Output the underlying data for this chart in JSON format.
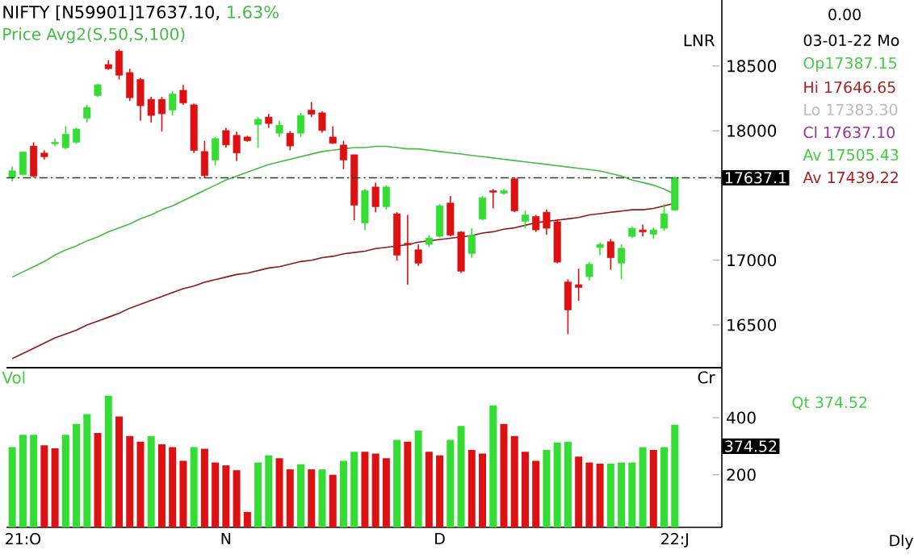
{
  "chart_data": [
    {
      "type": "candlestick",
      "title": "NIFTY [N59901]17637.10,",
      "subtitle": "1.63%",
      "categories": [
        null,
        null,
        null,
        null,
        null,
        null,
        null,
        null,
        null,
        null,
        null,
        null,
        null,
        null,
        null,
        null,
        null,
        null,
        null,
        null,
        null,
        null,
        null,
        null,
        null,
        null,
        null,
        null,
        null,
        null,
        null,
        null,
        null,
        null,
        null,
        null,
        null,
        null,
        null,
        null,
        null,
        null,
        null,
        null,
        null,
        null,
        null,
        null,
        null,
        null,
        null,
        null,
        null,
        null,
        null,
        null,
        null,
        null,
        null,
        null,
        null,
        null,
        null
      ],
      "ohlc": [
        [
          17641,
          17724,
          17608,
          17691
        ],
        [
          17662,
          17840,
          17655,
          17836
        ],
        [
          17882,
          17911,
          17641,
          17649
        ],
        [
          17828,
          17849,
          17778,
          17799
        ],
        [
          17899,
          17940,
          17882,
          17911
        ],
        [
          17869,
          18035,
          17857,
          17973
        ],
        [
          17911,
          18023,
          17899,
          18014
        ],
        [
          18097,
          18201,
          18064,
          18180
        ],
        [
          18272,
          18363,
          18263,
          18355
        ],
        [
          18512,
          18545,
          18471,
          18479
        ],
        [
          18616,
          18629,
          18396,
          18429
        ],
        [
          18450,
          18479,
          18230,
          18255
        ],
        [
          18396,
          18409,
          18077,
          18193
        ],
        [
          18243,
          18263,
          18064,
          18118
        ],
        [
          18243,
          18263,
          17994,
          18131
        ],
        [
          18160,
          18305,
          18118,
          18284
        ],
        [
          18313,
          18355,
          18201,
          18214
        ],
        [
          18201,
          18210,
          17828,
          17848
        ],
        [
          17840,
          17923,
          17633,
          17653
        ],
        [
          17774,
          17952,
          17732,
          17940
        ],
        [
          18002,
          18023,
          17869,
          17890
        ],
        [
          17965,
          17994,
          17766,
          17828
        ],
        [
          17952,
          17961,
          17915,
          17923
        ],
        [
          18048,
          18106,
          17869,
          18089
        ],
        [
          18106,
          18131,
          18023,
          18056
        ],
        [
          17981,
          18077,
          17952,
          18043
        ],
        [
          17981,
          17998,
          17849,
          17882
        ],
        [
          17981,
          18139,
          17952,
          18118
        ],
        [
          18160,
          18222,
          18106,
          18127
        ],
        [
          18139,
          18151,
          17985,
          18002
        ],
        [
          17952,
          18035,
          17899,
          17903
        ],
        [
          17890,
          17923,
          17703,
          17774
        ],
        [
          17815,
          17815,
          17309,
          17425
        ],
        [
          17288,
          17550,
          17234,
          17537
        ],
        [
          17566,
          17600,
          17371,
          17413
        ],
        [
          17413,
          17579,
          17392,
          17566
        ],
        [
          17359,
          17371,
          16998,
          17039
        ],
        [
          17131,
          17350,
          16811,
          17118
        ],
        [
          17081,
          17122,
          16956,
          16977
        ],
        [
          17122,
          17193,
          17101,
          17172
        ],
        [
          17185,
          17433,
          17176,
          17421
        ],
        [
          17442,
          17496,
          17185,
          17193
        ],
        [
          17218,
          17226,
          16902,
          16915
        ],
        [
          17052,
          17247,
          17019,
          17193
        ],
        [
          17317,
          17496,
          17309,
          17483
        ],
        [
          17537,
          17550,
          17400,
          17525
        ],
        [
          17517,
          17550,
          17504,
          17537
        ],
        [
          17629,
          17641,
          17371,
          17380
        ],
        [
          17301,
          17384,
          17247,
          17350
        ],
        [
          17338,
          17350,
          17218,
          17234
        ],
        [
          17371,
          17392,
          17197,
          17247
        ],
        [
          17297,
          17317,
          16977,
          16985
        ],
        [
          16832,
          16853,
          16429,
          16616
        ],
        [
          16811,
          16935,
          16687,
          16790
        ],
        [
          16873,
          16985,
          16844,
          16969
        ],
        [
          17098,
          17135,
          17039,
          17122
        ],
        [
          17143,
          17164,
          16927,
          17019
        ],
        [
          16977,
          17122,
          16853,
          17093
        ],
        [
          17184,
          17259,
          17172,
          17247
        ],
        [
          17234,
          17276,
          17184,
          17218
        ],
        [
          17201,
          17251,
          17164,
          17234
        ],
        [
          17247,
          17433,
          17226,
          17359
        ],
        [
          17387.15,
          17646.65,
          17383.3,
          17637.1
        ]
      ],
      "colors": [
        "#33dd33",
        "#33dd33",
        "#dd1111",
        "#dd1111",
        "#33dd33",
        "#33dd33",
        "#33dd33",
        "#33dd33",
        "#33dd33",
        "#dd1111",
        "#dd1111",
        "#dd1111",
        "#dd1111",
        "#dd1111",
        "#dd1111",
        "#33dd33",
        "#dd1111",
        "#dd1111",
        "#dd1111",
        "#33dd33",
        "#dd1111",
        "#dd1111",
        "#dd1111",
        "#33dd33",
        "#dd1111",
        "#33dd33",
        "#dd1111",
        "#33dd33",
        "#dd1111",
        "#dd1111",
        "#dd1111",
        "#dd1111",
        "#dd1111",
        "#33dd33",
        "#dd1111",
        "#33dd33",
        "#dd1111",
        "#dd1111",
        "#dd1111",
        "#33dd33",
        "#33dd33",
        "#dd1111",
        "#dd1111",
        "#33dd33",
        "#33dd33",
        "#dd1111",
        "#33dd33",
        "#dd1111",
        "#33dd33",
        "#dd1111",
        "#dd1111",
        "#dd1111",
        "#dd1111",
        "#dd1111",
        "#33dd33",
        "#33dd33",
        "#dd1111",
        "#33dd33",
        "#33dd33",
        "#dd1111",
        "#33dd33",
        "#33dd33",
        "#33dd33"
      ],
      "series": [
        {
          "type": "line",
          "color": "#44bb44",
          "values": [
            16870,
            16910,
            16950,
            16990,
            17040,
            17080,
            17110,
            17150,
            17180,
            17220,
            17250,
            17280,
            17320,
            17350,
            17390,
            17420,
            17460,
            17500,
            17540,
            17580,
            17620,
            17650,
            17680,
            17710,
            17740,
            17760,
            17780,
            17800,
            17820,
            17840,
            17850,
            17860,
            17870,
            17870,
            17880,
            17880,
            17870,
            17860,
            17860,
            17850,
            17840,
            17830,
            17820,
            17810,
            17800,
            17790,
            17780,
            17770,
            17760,
            17750,
            17740,
            17730,
            17720,
            17710,
            17700,
            17690,
            17670,
            17650,
            17620,
            17600,
            17580,
            17550,
            17510
          ]
        },
        {
          "type": "line",
          "color": "#8b1a1a",
          "values": [
            16240,
            16280,
            16320,
            16360,
            16400,
            16430,
            16460,
            16500,
            16530,
            16560,
            16590,
            16630,
            16660,
            16690,
            16720,
            16750,
            16780,
            16800,
            16830,
            16850,
            16870,
            16890,
            16900,
            16920,
            16940,
            16950,
            16970,
            16990,
            17000,
            17020,
            17030,
            17050,
            17060,
            17070,
            17090,
            17100,
            17110,
            17120,
            17140,
            17150,
            17160,
            17170,
            17180,
            17190,
            17210,
            17220,
            17240,
            17250,
            17270,
            17290,
            17300,
            17310,
            17320,
            17330,
            17350,
            17360,
            17370,
            17380,
            17390,
            17390,
            17400,
            17420,
            17440
          ]
        }
      ],
      "ylim": [
        16170,
        19010
      ],
      "yticks": [
        16500,
        17000,
        18000,
        18500
      ],
      "tick_labels": "y",
      "ref_lines": [
        {
          "axis": "y",
          "value": 17637.1,
          "label": "17637.1",
          "color": "#224422",
          "line_style": "dashed"
        }
      ],
      "annotations": [
        "Price Avg2(S,50,S,100)",
        "LNR",
        "0.00",
        "03-01-22 Mo",
        "Op17387.15",
        "Hi 17646.65",
        "Lo 17383.30",
        "Cl 17637.10",
        "Av 17505.43",
        "Av 17439.22"
      ]
    },
    {
      "type": "bar",
      "ylabel": "Vol",
      "categories": [
        null,
        "21:O",
        null,
        null,
        null,
        null,
        null,
        null,
        null,
        null,
        null,
        null,
        null,
        null,
        null,
        null,
        null,
        null,
        null,
        null,
        "N",
        null,
        null,
        null,
        null,
        null,
        null,
        null,
        null,
        null,
        null,
        null,
        null,
        null,
        null,
        null,
        null,
        null,
        null,
        null,
        "D",
        null,
        null,
        null,
        null,
        null,
        null,
        null,
        null,
        null,
        null,
        null,
        null,
        null,
        null,
        null,
        null,
        null,
        null,
        null,
        null,
        null,
        "22:J"
      ],
      "values": [
        297,
        340,
        340,
        303,
        293,
        340,
        378,
        413,
        346,
        477,
        404,
        336,
        316,
        336,
        307,
        297,
        249,
        297,
        291,
        243,
        233,
        216,
        70,
        243,
        268,
        258,
        219,
        237,
        219,
        219,
        200,
        249,
        281,
        281,
        274,
        258,
        322,
        316,
        355,
        281,
        268,
        322,
        371,
        287,
        274,
        443,
        378,
        336,
        281,
        249,
        287,
        313,
        316,
        264,
        243,
        239,
        239,
        243,
        243,
        297,
        287,
        297,
        375
      ],
      "colors": [
        "#33dd33",
        "#33dd33",
        "#33dd33",
        "#dd1111",
        "#dd1111",
        "#33dd33",
        "#33dd33",
        "#33dd33",
        "#dd1111",
        "#33dd33",
        "#dd1111",
        "#dd1111",
        "#dd1111",
        "#33dd33",
        "#dd1111",
        "#dd1111",
        "#dd1111",
        "#33dd33",
        "#dd1111",
        "#dd1111",
        "#dd1111",
        "#dd1111",
        "#dd1111",
        "#33dd33",
        "#33dd33",
        "#dd1111",
        "#dd1111",
        "#33dd33",
        "#dd1111",
        "#33dd33",
        "#dd1111",
        "#33dd33",
        "#33dd33",
        "#dd1111",
        "#dd1111",
        "#dd1111",
        "#33dd33",
        "#dd1111",
        "#33dd33",
        "#dd1111",
        "#dd1111",
        "#33dd33",
        "#33dd33",
        "#dd1111",
        "#dd1111",
        "#33dd33",
        "#dd1111",
        "#dd1111",
        "#dd1111",
        "#dd1111",
        "#33dd33",
        "#33dd33",
        "#33dd33",
        "#dd1111",
        "#dd1111",
        "#dd1111",
        "#33dd33",
        "#33dd33",
        "#33dd33",
        "#33dd33",
        "#dd1111",
        "#33dd33",
        "#33dd33"
      ],
      "ylim": [
        16,
        575
      ],
      "yticks": [
        200,
        400
      ],
      "annotations": [
        "Cr",
        "374.52",
        "Qt 374.52",
        "Dly"
      ]
    }
  ]
}
